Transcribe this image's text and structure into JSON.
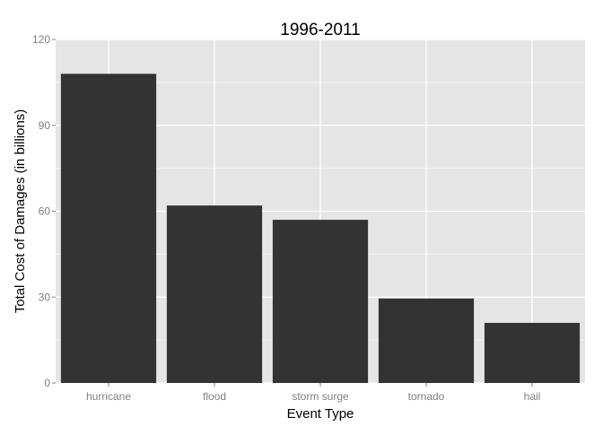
{
  "chart_data": {
    "type": "bar",
    "title": "1996-2011",
    "xlabel": "Event Type",
    "ylabel": "Total Cost of Damages (in billions)",
    "categories": [
      "hurricane",
      "flood",
      "storm surge",
      "tornado",
      "hail"
    ],
    "values": [
      108,
      62,
      57,
      29.5,
      21
    ],
    "ylim": [
      0,
      120
    ],
    "yticks": [
      "0",
      "30",
      "60",
      "90",
      "120"
    ],
    "grid": true,
    "colors": {
      "bar": "#333333",
      "panel": "#e5e5e5",
      "grid_major": "#ffffff",
      "grid_minor": "#f2f2f2",
      "tick_label": "#7f7f7f"
    }
  }
}
